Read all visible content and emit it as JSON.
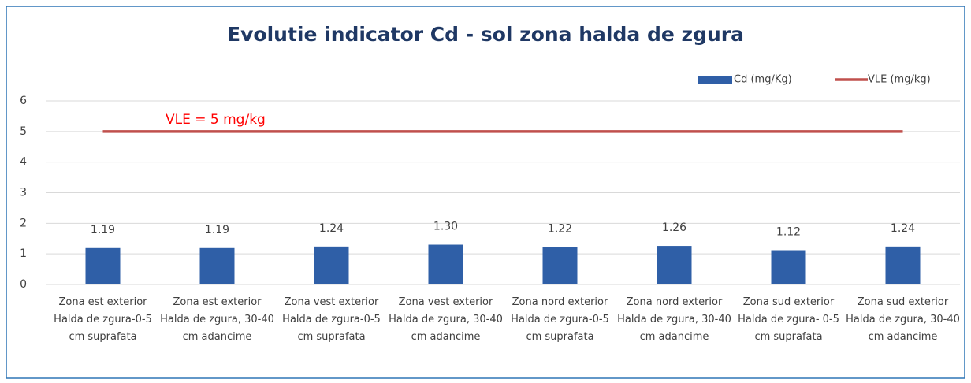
{
  "chart_data": {
    "type": "bar",
    "title": "Evolutie indicator Cd - sol zona halda de zgura",
    "categories": [
      "Zona est exterior Halda de zgura-0-5 cm suprafata",
      "Zona est  exterior Halda de zgura, 30-40 cm adancime",
      "Zona vest exterior  Halda de zgura-0-5 cm suprafata",
      "Zona vest exterior  Halda de zgura, 30-40 cm adancime",
      "Zona nord exterior  Halda de zgura-0-5 cm suprafata",
      "Zona nord exterior  Halda de zgura, 30-40 cm adancime",
      "Zona sud exterior  Halda de zgura-  0-5 cm suprafata",
      "Zona sud exterior  Halda de zgura, 30-40 cm adancime"
    ],
    "series": [
      {
        "name": "Cd (mg/Kg)",
        "type": "bar",
        "color": "#2f5fa7",
        "values": [
          1.19,
          1.19,
          1.24,
          1.3,
          1.22,
          1.26,
          1.12,
          1.24
        ],
        "value_labels": [
          "1.19",
          "1.19",
          "1.24",
          "1.30",
          "1.22",
          "1.26",
          "1.12",
          "1.24"
        ]
      },
      {
        "name": "VLE (mg/kg)",
        "type": "line",
        "color": "#c0504d",
        "values": [
          5,
          5,
          5,
          5,
          5,
          5,
          5,
          5
        ]
      }
    ],
    "annotations": [
      "VLE = 5 mg/kg"
    ],
    "ylim": [
      0,
      6
    ],
    "yticks": [
      0,
      1,
      2,
      3,
      4,
      5,
      6
    ],
    "grid": true,
    "legend": "top-right"
  }
}
